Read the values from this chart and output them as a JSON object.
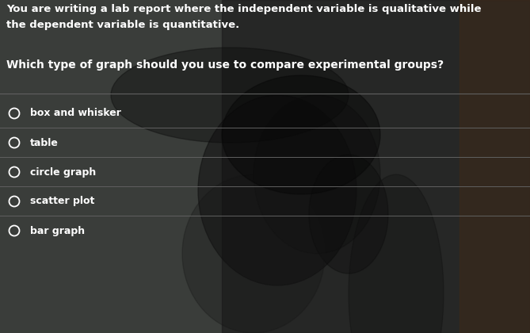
{
  "bg_color_left": "#3a3d3a",
  "bg_color": "#3a3d3a",
  "text_color": "#ffffff",
  "line_color": "#606060",
  "prompt_line1": "You are writing a lab report where the independent variable is qualitative while",
  "prompt_line2": "the dependent variable is quantitative.",
  "question": "Which type of graph should you use to compare experimental groups?",
  "options": [
    "box and whisker",
    "table",
    "circle graph",
    "scatter plot",
    "bar graph"
  ],
  "prompt_fontsize": 9.5,
  "question_fontsize": 10.0,
  "option_fontsize": 9.0,
  "figsize": [
    6.69,
    4.2
  ],
  "dpi": 100
}
